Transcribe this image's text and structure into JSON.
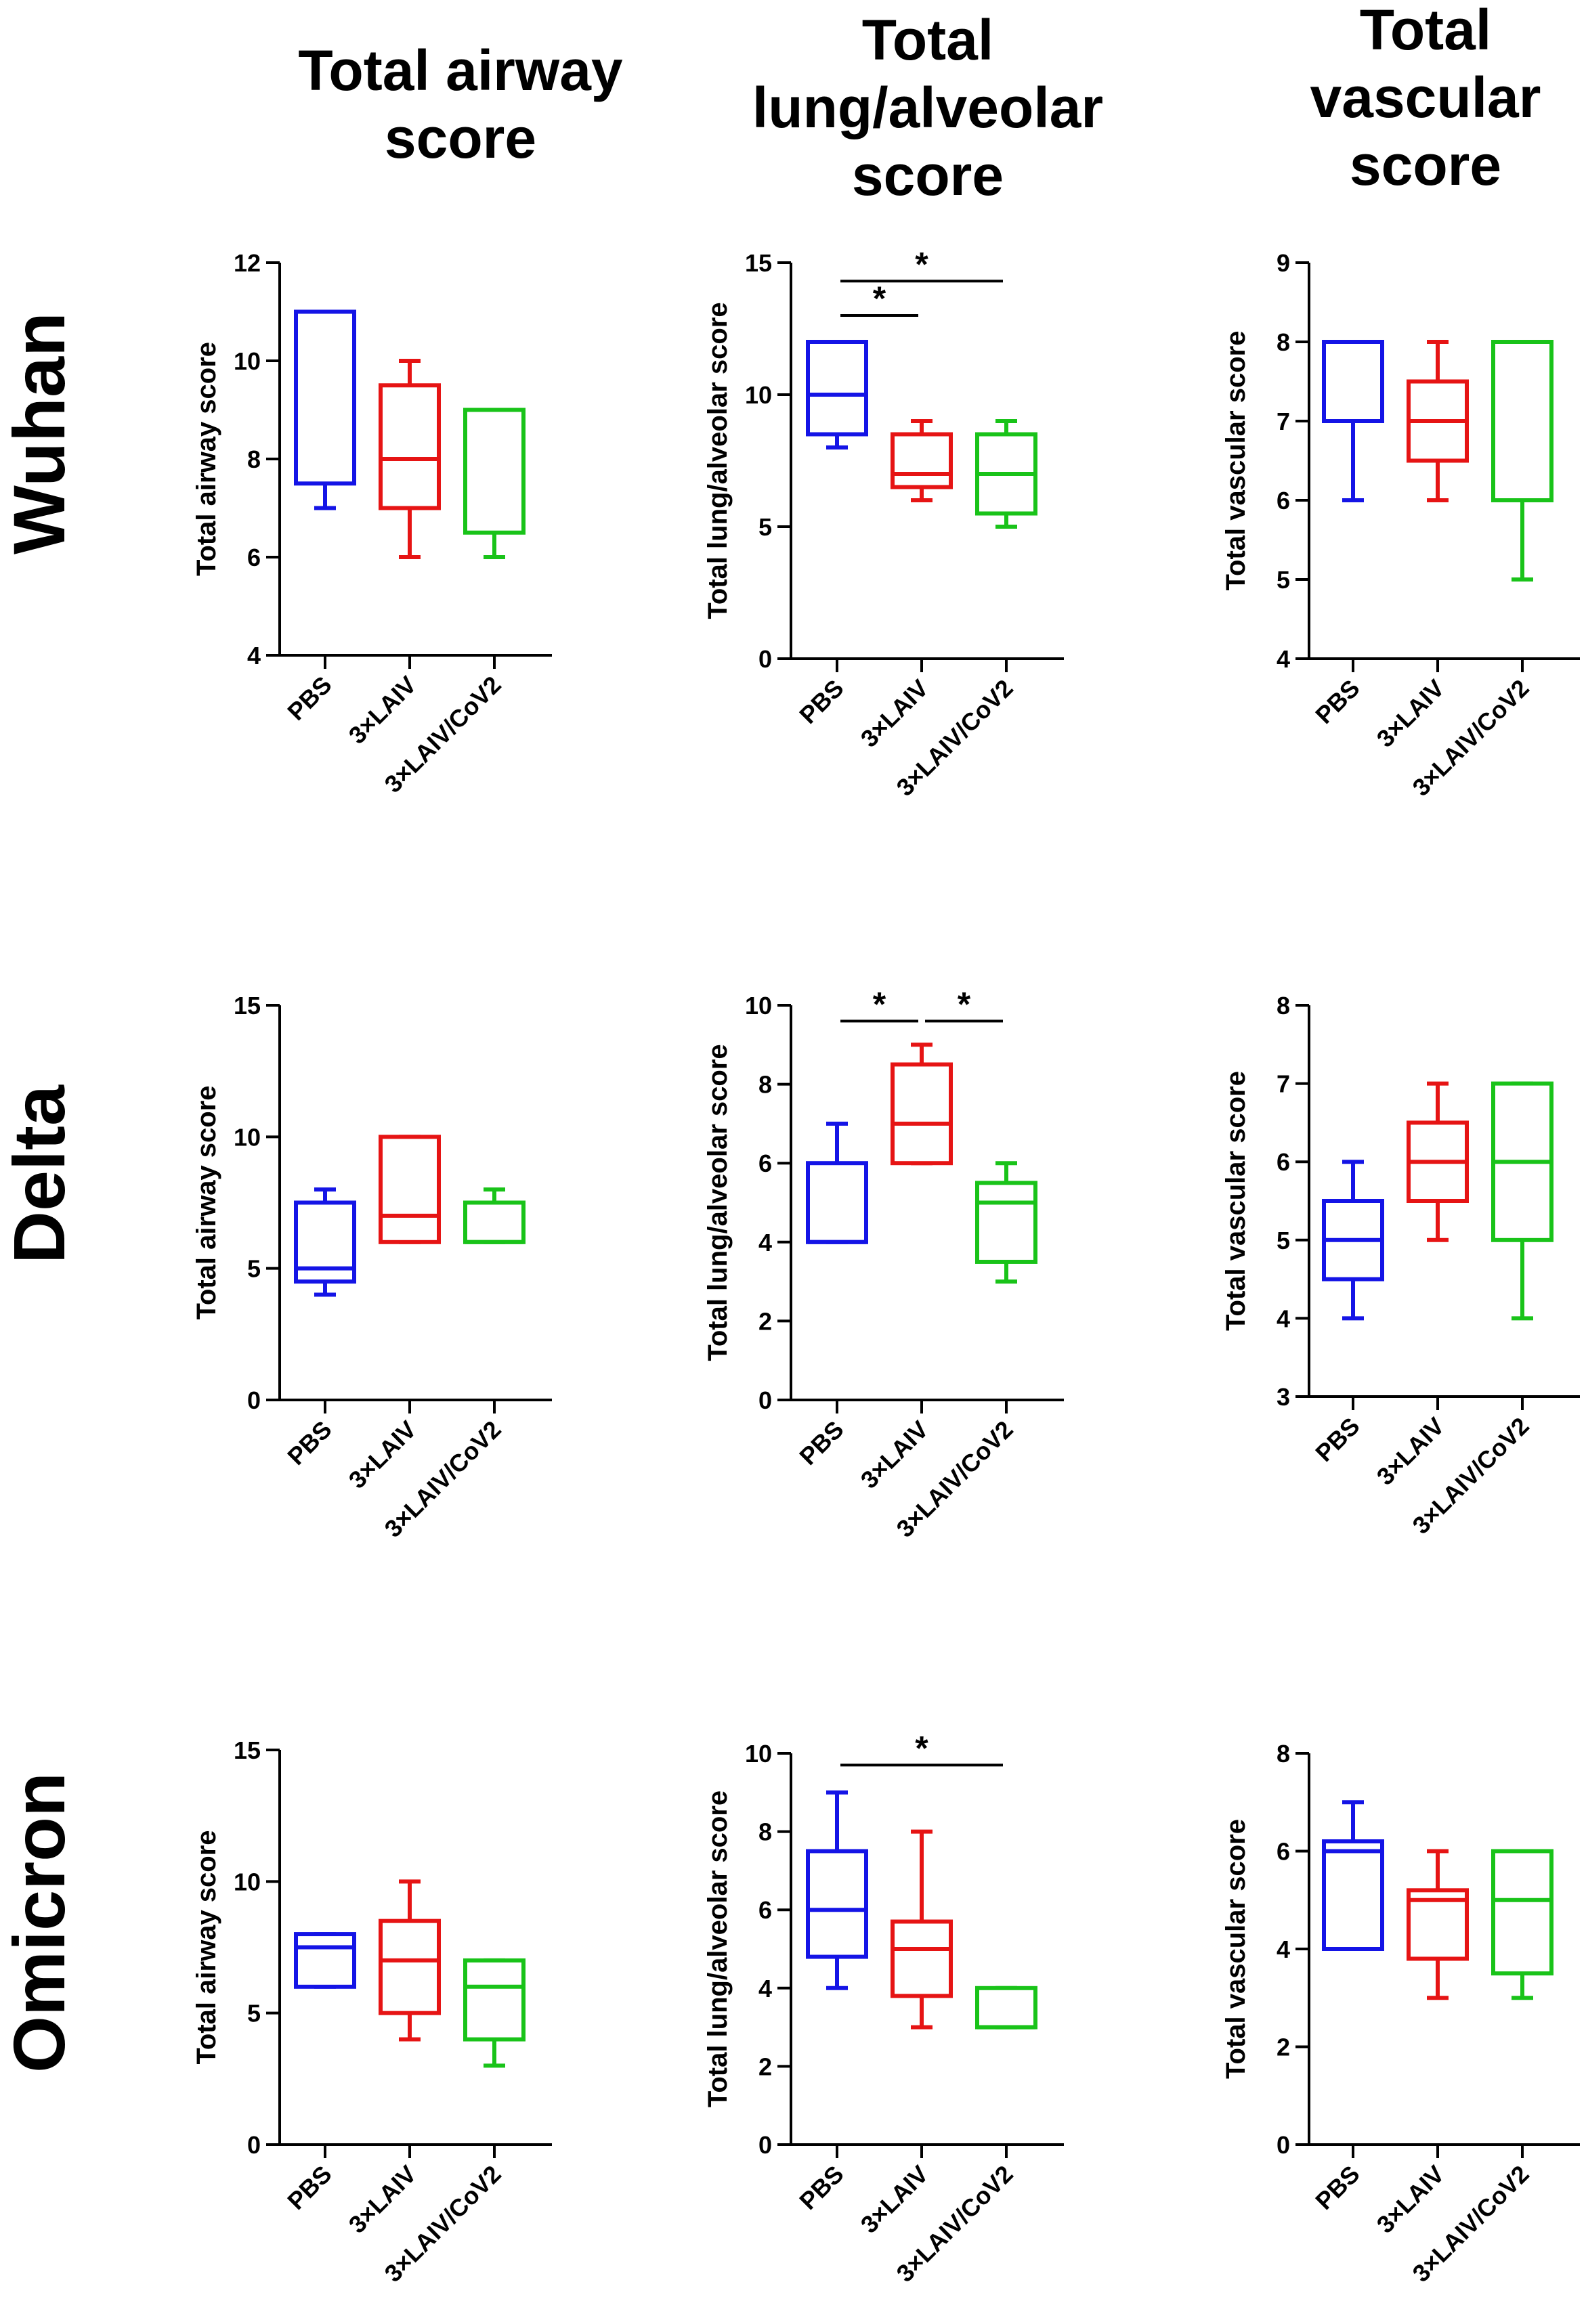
{
  "figure": {
    "column_titles": [
      [
        "Total airway",
        "score"
      ],
      [
        "Total",
        "lung/alveolar",
        "score"
      ],
      [
        "Total",
        "vascular",
        "score"
      ]
    ],
    "row_labels": [
      "Wuhan",
      "Delta",
      "Omicron"
    ],
    "colors": {
      "PBS": "#1414e6",
      "3xLAIV": "#e61414",
      "3xLAIV/CoV2": "#19c319"
    }
  },
  "chart_data": [
    {
      "type": "box",
      "row": "Wuhan",
      "column": "Total airway score",
      "ylabel": "Total airway score",
      "ylim": [
        4,
        12
      ],
      "yticks": [
        4,
        6,
        8,
        10,
        12
      ],
      "ytick_labels": [
        "4",
        "6",
        "8",
        "10",
        "12"
      ],
      "categories": [
        "PBS",
        "3×LAIV",
        "3×LAIV/CoV2"
      ],
      "boxes": [
        {
          "min": 7,
          "q1": 7.5,
          "median": 11,
          "q3": 11,
          "max": 11
        },
        {
          "min": 6,
          "q1": 7,
          "median": 8,
          "q3": 9.5,
          "max": 10
        },
        {
          "min": 6,
          "q1": 6.5,
          "median": 9,
          "q3": 9,
          "max": 9
        }
      ],
      "significance": []
    },
    {
      "type": "box",
      "row": "Wuhan",
      "column": "Total lung/alveolar score",
      "ylabel": "Total lung/alveolar score",
      "ylim": [
        0,
        15
      ],
      "yticks": [
        0,
        5,
        10,
        15
      ],
      "ytick_labels": [
        "0",
        "5",
        "10",
        "15"
      ],
      "categories": [
        "PBS",
        "3×LAIV",
        "3×LAIV/CoV2"
      ],
      "boxes": [
        {
          "min": 8,
          "q1": 8.5,
          "median": 10,
          "q3": 12,
          "max": 12
        },
        {
          "min": 6,
          "q1": 6.5,
          "median": 7,
          "q3": 8.5,
          "max": 9
        },
        {
          "min": 5,
          "q1": 5.5,
          "median": 7,
          "q3": 8.5,
          "max": 9
        }
      ],
      "significance": [
        {
          "from": 0,
          "to": 1,
          "label": "*",
          "y": 13
        },
        {
          "from": 0,
          "to": 2,
          "label": "*",
          "y": 14.3
        }
      ]
    },
    {
      "type": "box",
      "row": "Wuhan",
      "column": "Total vascular score",
      "ylabel": "Total vascular score",
      "ylim": [
        4,
        9
      ],
      "yticks": [
        4,
        5,
        6,
        7,
        8,
        9
      ],
      "ytick_labels": [
        "4",
        "5",
        "6",
        "7",
        "8",
        "9"
      ],
      "categories": [
        "PBS",
        "3×LAIV",
        "3×LAIV/CoV2"
      ],
      "boxes": [
        {
          "min": 6,
          "q1": 7,
          "median": 8,
          "q3": 8,
          "max": 8
        },
        {
          "min": 6,
          "q1": 6.5,
          "median": 7,
          "q3": 7.5,
          "max": 8
        },
        {
          "min": 5,
          "q1": 6,
          "median": 8,
          "q3": 8,
          "max": 8
        }
      ],
      "significance": []
    },
    {
      "type": "box",
      "row": "Delta",
      "column": "Total airway score",
      "ylabel": "Total airway score",
      "ylim": [
        0,
        15
      ],
      "yticks": [
        0,
        5,
        10,
        15
      ],
      "ytick_labels": [
        "0",
        "5",
        "10",
        "15"
      ],
      "categories": [
        "PBS",
        "3×LAIV",
        "3×LAIV/CoV2"
      ],
      "boxes": [
        {
          "min": 4,
          "q1": 4.5,
          "median": 5,
          "q3": 7.5,
          "max": 8
        },
        {
          "min": 6,
          "q1": 6,
          "median": 7,
          "q3": 10,
          "max": 10
        },
        {
          "min": 6,
          "q1": 6,
          "median": 6,
          "q3": 7.5,
          "max": 8
        }
      ],
      "significance": []
    },
    {
      "type": "box",
      "row": "Delta",
      "column": "Total lung/alveolar score",
      "ylabel": "Total lung/alveolar score",
      "ylim": [
        0,
        10
      ],
      "yticks": [
        0,
        2,
        4,
        6,
        8,
        10
      ],
      "ytick_labels": [
        "0",
        "2",
        "4",
        "6",
        "8",
        "10"
      ],
      "categories": [
        "PBS",
        "3×LAIV",
        "3×LAIV/CoV2"
      ],
      "boxes": [
        {
          "min": 4,
          "q1": 4,
          "median": 4,
          "q3": 6,
          "max": 7
        },
        {
          "min": 6,
          "q1": 6,
          "median": 7,
          "q3": 8.5,
          "max": 9
        },
        {
          "min": 3,
          "q1": 3.5,
          "median": 5,
          "q3": 5.5,
          "max": 6
        }
      ],
      "significance": [
        {
          "from": 0,
          "to": 1,
          "label": "*",
          "y": 9.6
        },
        {
          "from": 1,
          "to": 2,
          "label": "*",
          "y": 9.6
        }
      ]
    },
    {
      "type": "box",
      "row": "Delta",
      "column": "Total vascular score",
      "ylabel": "Total vascular score",
      "ylim": [
        3,
        8
      ],
      "yticks": [
        3,
        4,
        5,
        6,
        7,
        8
      ],
      "ytick_labels": [
        "3",
        "4",
        "5",
        "6",
        "7",
        "8"
      ],
      "categories": [
        "PBS",
        "3×LAIV",
        "3×LAIV/CoV2"
      ],
      "boxes": [
        {
          "min": 4,
          "q1": 4.5,
          "median": 5,
          "q3": 5.5,
          "max": 6
        },
        {
          "min": 5,
          "q1": 5.5,
          "median": 6,
          "q3": 6.5,
          "max": 7
        },
        {
          "min": 4,
          "q1": 5,
          "median": 6,
          "q3": 7,
          "max": 7
        }
      ],
      "significance": []
    },
    {
      "type": "box",
      "row": "Omicron",
      "column": "Total airway score",
      "ylabel": "Total airway score",
      "ylim": [
        0,
        15
      ],
      "yticks": [
        0,
        5,
        10,
        15
      ],
      "ytick_labels": [
        "0",
        "5",
        "10",
        "15"
      ],
      "categories": [
        "PBS",
        "3×LAIV",
        "3×LAIV/CoV2"
      ],
      "boxes": [
        {
          "min": 6,
          "q1": 6,
          "median": 7.5,
          "q3": 8,
          "max": 8
        },
        {
          "min": 4,
          "q1": 5,
          "median": 7,
          "q3": 8.5,
          "max": 10
        },
        {
          "min": 3,
          "q1": 4,
          "median": 6,
          "q3": 7,
          "max": 7
        }
      ],
      "significance": []
    },
    {
      "type": "box",
      "row": "Omicron",
      "column": "Total lung/alveolar score",
      "ylabel": "Total lung/alveolar score",
      "ylim": [
        0,
        10
      ],
      "yticks": [
        0,
        2,
        4,
        6,
        8,
        10
      ],
      "ytick_labels": [
        "0",
        "2",
        "4",
        "6",
        "8",
        "10"
      ],
      "categories": [
        "PBS",
        "3×LAIV",
        "3×LAIV/CoV2"
      ],
      "boxes": [
        {
          "min": 4,
          "q1": 4.8,
          "median": 6,
          "q3": 7.5,
          "max": 9
        },
        {
          "min": 3,
          "q1": 3.8,
          "median": 5,
          "q3": 5.7,
          "max": 8
        },
        {
          "min": 3,
          "q1": 3,
          "median": 3,
          "q3": 4,
          "max": 4
        }
      ],
      "significance": [
        {
          "from": 0,
          "to": 2,
          "label": "*",
          "y": 9.7
        }
      ]
    },
    {
      "type": "box",
      "row": "Omicron",
      "column": "Total vascular score",
      "ylabel": "Total vascular score",
      "ylim": [
        0,
        8
      ],
      "yticks": [
        0,
        2,
        4,
        6,
        8
      ],
      "ytick_labels": [
        "0",
        "2",
        "4",
        "6",
        "8"
      ],
      "categories": [
        "PBS",
        "3×LAIV",
        "3×LAIV/CoV2"
      ],
      "boxes": [
        {
          "min": 4,
          "q1": 4,
          "median": 6,
          "q3": 6.2,
          "max": 7
        },
        {
          "min": 3,
          "q1": 3.8,
          "median": 5,
          "q3": 5.2,
          "max": 6
        },
        {
          "min": 3,
          "q1": 3.5,
          "median": 5,
          "q3": 6,
          "max": 6
        }
      ],
      "significance": []
    }
  ]
}
